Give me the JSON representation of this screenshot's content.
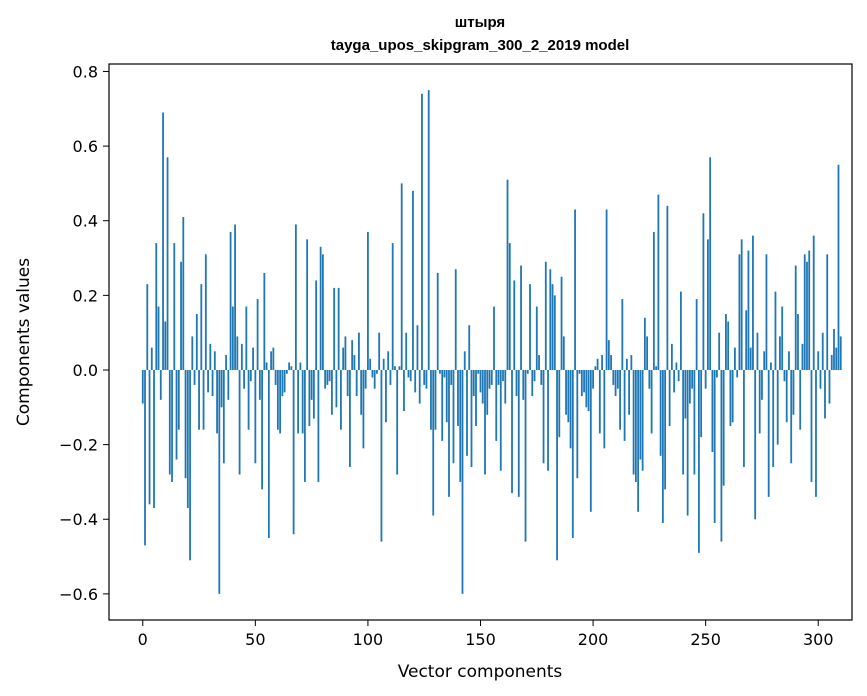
{
  "chart_data": {
    "type": "bar",
    "title_line1": "штыря",
    "title_line2": "tayga_upos_skipgram_300_2_2019 model",
    "xlabel": "Vector components",
    "ylabel": "Components values",
    "xlim": [
      -15,
      315
    ],
    "ylim": [
      -0.67,
      0.82
    ],
    "xticks": [
      0,
      50,
      100,
      150,
      200,
      250,
      300
    ],
    "xtick_labels": [
      "0",
      "50",
      "100",
      "150",
      "200",
      "250",
      "300"
    ],
    "yticks": [
      -0.6,
      -0.4,
      -0.2,
      0.0,
      0.2,
      0.4,
      0.6,
      0.8
    ],
    "ytick_labels": [
      "−0.6",
      "−0.4",
      "−0.2",
      "0.0",
      "0.2",
      "0.4",
      "0.6",
      "0.8"
    ],
    "bar_color": "#1f77b4",
    "values": [
      -0.09,
      -0.47,
      0.23,
      -0.36,
      0.06,
      -0.37,
      0.34,
      0.17,
      -0.08,
      0.69,
      0.13,
      0.57,
      -0.28,
      -0.3,
      0.34,
      -0.24,
      -0.16,
      0.29,
      0.41,
      -0.29,
      -0.37,
      -0.51,
      0.09,
      -0.04,
      0.15,
      -0.16,
      0.23,
      -0.16,
      0.31,
      -0.06,
      0.07,
      -0.07,
      0.05,
      -0.17,
      -0.6,
      -0.1,
      -0.25,
      0.04,
      -0.08,
      0.37,
      0.17,
      0.39,
      0.09,
      -0.28,
      0.07,
      -0.05,
      0.17,
      -0.16,
      -0.03,
      0.06,
      -0.25,
      0.19,
      -0.08,
      -0.32,
      0.26,
      0.02,
      -0.45,
      0.05,
      0.06,
      -0.04,
      -0.16,
      -0.17,
      -0.07,
      -0.06,
      -0.01,
      0.02,
      0.01,
      -0.44,
      0.39,
      -0.17,
      0.02,
      -0.17,
      -0.3,
      0.35,
      -0.15,
      -0.08,
      -0.13,
      0.24,
      -0.3,
      0.33,
      0.31,
      -0.05,
      -0.04,
      -0.03,
      -0.12,
      0.22,
      -0.1,
      0.22,
      -0.16,
      0.06,
      0.09,
      -0.07,
      -0.26,
      0.08,
      0.04,
      -0.07,
      0.1,
      -0.12,
      -0.21,
      -0.05,
      0.37,
      0.03,
      -0.02,
      -0.05,
      -0.01,
      0.1,
      -0.46,
      0.03,
      -0.14,
      0.05,
      -0.04,
      0.34,
      0.01,
      -0.28,
      0.01,
      0.5,
      -0.11,
      0.1,
      -0.02,
      -0.03,
      0.48,
      -0.06,
      0.12,
      -0.09,
      0.74,
      -0.04,
      -0.05,
      0.75,
      -0.16,
      -0.39,
      -0.16,
      0.26,
      -0.01,
      -0.19,
      -0.02,
      -0.14,
      -0.34,
      -0.04,
      -0.25,
      0.27,
      -0.15,
      -0.3,
      -0.6,
      0.05,
      -0.23,
      0.12,
      -0.26,
      -0.07,
      -0.15,
      -0.01,
      -0.06,
      -0.09,
      -0.28,
      -0.12,
      -0.05,
      -0.04,
      0.17,
      -0.19,
      -0.04,
      -0.27,
      -0.03,
      -0.09,
      0.51,
      0.34,
      -0.33,
      0.24,
      -0.07,
      -0.34,
      0.28,
      -0.08,
      -0.46,
      -0.01,
      0.23,
      -0.07,
      -0.03,
      0.17,
      0.04,
      -0.04,
      -0.25,
      0.29,
      -0.27,
      0.27,
      0.23,
      0.2,
      -0.51,
      -0.18,
      0.25,
      0.09,
      -0.12,
      -0.14,
      -0.21,
      -0.45,
      0.43,
      -0.29,
      -0.01,
      -0.07,
      -0.06,
      -0.1,
      -0.11,
      -0.38,
      -0.05,
      0.01,
      0.03,
      -0.17,
      0.04,
      -0.21,
      0.43,
      0.08,
      0.04,
      -0.04,
      -0.07,
      -0.05,
      -0.16,
      0.19,
      -0.19,
      0.03,
      -0.12,
      0.04,
      -0.28,
      -0.3,
      -0.38,
      -0.24,
      -0.27,
      0.14,
      0.09,
      -0.05,
      -0.17,
      0.37,
      0.01,
      0.47,
      -0.23,
      -0.41,
      -0.32,
      0.44,
      -0.15,
      0.07,
      -0.06,
      0.02,
      -0.03,
      0.21,
      -0.28,
      -0.13,
      -0.39,
      -0.09,
      -0.05,
      -0.28,
      0.19,
      -0.49,
      -0.18,
      0.42,
      -0.05,
      0.35,
      0.57,
      -0.22,
      -0.41,
      -0.02,
      0.1,
      -0.46,
      -0.31,
      0.15,
      0.13,
      -0.15,
      -0.14,
      0.06,
      -0.02,
      0.31,
      0.35,
      -0.26,
      0.16,
      0.32,
      0.06,
      0.36,
      -0.4,
      0.1,
      -0.17,
      -0.08,
      0.05,
      0.31,
      -0.34,
      0.02,
      -0.26,
      0.21,
      -0.2,
      0.09,
      0.17,
      -0.03,
      -0.14,
      0.05,
      -0.25,
      -0.12,
      0.28,
      0.15,
      -0.16,
      0.07,
      0.31,
      0.29,
      0.32,
      -0.3,
      0.36,
      -0.34,
      0.05,
      -0.05,
      0.1,
      -0.13,
      0.31,
      -0.09,
      0.04,
      0.11,
      0.06,
      0.55,
      0.09
    ]
  }
}
